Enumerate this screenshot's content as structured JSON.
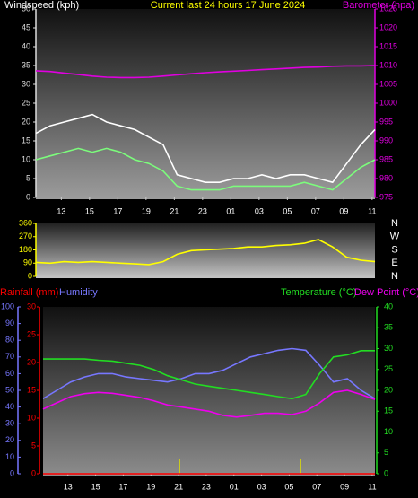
{
  "chart_data": [
    {
      "type": "line",
      "title": "Current last 24 hours 17 June 2024",
      "y_label": "Windspeed (kph)",
      "y2_label": "Barometer (hpa)",
      "x": [
        0,
        1,
        2,
        3,
        4,
        5,
        6,
        7,
        8,
        9,
        10,
        11,
        12,
        13,
        14,
        15,
        16,
        17,
        18,
        19,
        20,
        21,
        22,
        23,
        24
      ],
      "xlim": [
        0,
        24
      ],
      "xticks": [
        {
          "value": 1.8,
          "label": "13"
        },
        {
          "value": 3.8,
          "label": "15"
        },
        {
          "value": 5.8,
          "label": "17"
        },
        {
          "value": 7.8,
          "label": "19"
        },
        {
          "value": 9.8,
          "label": "21"
        },
        {
          "value": 11.8,
          "label": "23"
        },
        {
          "value": 13.8,
          "label": "01"
        },
        {
          "value": 15.8,
          "label": "03"
        },
        {
          "value": 17.8,
          "label": "05"
        },
        {
          "value": 19.8,
          "label": "07"
        },
        {
          "value": 21.8,
          "label": "09"
        },
        {
          "value": 23.8,
          "label": "11"
        }
      ],
      "ylim": [
        0,
        50
      ],
      "yticks": [
        0,
        5,
        10,
        15,
        20,
        25,
        30,
        35,
        40,
        45,
        50
      ],
      "y2lim": [
        975,
        1025
      ],
      "y2ticks": [
        975,
        980,
        985,
        990,
        995,
        1000,
        1005,
        1010,
        1015,
        1020,
        1025
      ],
      "series": [
        {
          "color": "#ffffff",
          "values": [
            17,
            19,
            20,
            21,
            22,
            20,
            19,
            18,
            16,
            14,
            6,
            5,
            4,
            4,
            5,
            5,
            6,
            5,
            6,
            6,
            5,
            4,
            9,
            14,
            18
          ]
        },
        {
          "color": "#7cfc7c",
          "values": [
            10,
            11,
            12,
            13,
            12,
            13,
            12,
            10,
            9,
            7,
            3,
            2,
            2,
            2,
            3,
            3,
            3,
            3,
            3,
            4,
            3,
            2,
            5,
            8,
            10
          ]
        },
        {
          "color": "#e000e0",
          "axis": "y2",
          "values": [
            1008.6,
            1008.4,
            1008,
            1007.6,
            1007.2,
            1006.9,
            1006.8,
            1006.8,
            1006.9,
            1007.2,
            1007.5,
            1007.8,
            1008.1,
            1008.3,
            1008.5,
            1008.7,
            1008.9,
            1009.1,
            1009.3,
            1009.5,
            1009.6,
            1009.8,
            1009.9,
            1009.9,
            1010
          ]
        }
      ]
    },
    {
      "type": "line",
      "x": [
        0,
        1,
        2,
        3,
        4,
        5,
        6,
        7,
        8,
        9,
        10,
        11,
        12,
        13,
        14,
        15,
        16,
        17,
        18,
        19,
        20,
        21,
        22,
        23,
        24
      ],
      "xlim": [
        0,
        24
      ],
      "ylim": [
        0,
        360
      ],
      "yticks": [
        0,
        90,
        180,
        270,
        360
      ],
      "y2lim": [
        0,
        360
      ],
      "y2ticks": [
        {
          "value": 0,
          "label": "N"
        },
        {
          "value": 90,
          "label": "E"
        },
        {
          "value": 180,
          "label": "S"
        },
        {
          "value": 270,
          "label": "W"
        },
        {
          "value": 360,
          "label": "N"
        }
      ],
      "series": [
        {
          "color": "#ffff00",
          "values": [
            95,
            90,
            100,
            95,
            100,
            95,
            90,
            85,
            80,
            100,
            150,
            175,
            180,
            185,
            190,
            200,
            200,
            210,
            215,
            225,
            250,
            200,
            130,
            110,
            100
          ]
        }
      ]
    },
    {
      "type": "line",
      "x": [
        0,
        1,
        2,
        3,
        4,
        5,
        6,
        7,
        8,
        9,
        10,
        11,
        12,
        13,
        14,
        15,
        16,
        17,
        18,
        19,
        20,
        21,
        22,
        23,
        24
      ],
      "xlim": [
        0,
        24
      ],
      "xticks": [
        {
          "value": 1.8,
          "label": "13"
        },
        {
          "value": 3.8,
          "label": "15"
        },
        {
          "value": 5.8,
          "label": "17"
        },
        {
          "value": 7.8,
          "label": "19"
        },
        {
          "value": 9.8,
          "label": "21"
        },
        {
          "value": 11.8,
          "label": "23"
        },
        {
          "value": 13.8,
          "label": "01"
        },
        {
          "value": 15.8,
          "label": "03"
        },
        {
          "value": 17.8,
          "label": "05"
        },
        {
          "value": 19.8,
          "label": "07"
        },
        {
          "value": 21.8,
          "label": "09"
        },
        {
          "value": 23.8,
          "label": "11"
        }
      ],
      "ylim": [
        0,
        100
      ],
      "yticks": [
        0,
        10,
        20,
        30,
        40,
        50,
        60,
        70,
        80,
        90,
        100
      ],
      "y2lim": [
        0,
        40
      ],
      "y2ticks": [
        0,
        5,
        10,
        15,
        20,
        25,
        30,
        35,
        40
      ],
      "y3lim": [
        0,
        30
      ],
      "y3ticks": [
        0,
        5,
        10,
        15,
        20,
        25,
        30
      ],
      "series": [
        {
          "name": "Rainfall (mm)",
          "color": "#ff0000",
          "axis": "y3",
          "values": [
            0,
            0,
            0,
            0,
            0,
            0,
            0,
            0,
            0,
            0,
            0,
            0,
            0,
            0,
            0,
            0,
            0,
            0,
            0,
            0,
            0,
            0,
            0,
            0,
            0
          ]
        },
        {
          "name": "Humidity",
          "color": "#7777ff",
          "values": [
            45,
            50,
            55,
            58,
            60,
            60,
            58,
            57,
            56,
            55,
            57,
            60,
            60,
            62,
            66,
            70,
            72,
            74,
            75,
            74,
            65,
            55,
            57,
            50,
            45
          ]
        },
        {
          "name": "Temperature (°C)",
          "color": "#22dd22",
          "axis": "y2",
          "values": [
            27.5,
            27.5,
            27.5,
            27.5,
            27.2,
            27,
            26.5,
            26,
            25,
            23.5,
            22.5,
            21.5,
            21,
            20.5,
            20,
            19.5,
            19,
            18.5,
            18,
            19,
            24,
            28,
            28.5,
            29.5,
            29.5
          ]
        },
        {
          "name": "Dew Point (°C)",
          "color": "#ee00ee",
          "axis": "y2",
          "values": [
            15.5,
            17,
            18.5,
            19.2,
            19.5,
            19.3,
            18.8,
            18.3,
            17.5,
            16.5,
            16,
            15.5,
            15,
            14,
            13.6,
            14,
            14.5,
            14.5,
            14.2,
            15,
            17,
            19.5,
            20,
            19,
            17.8
          ]
        }
      ]
    }
  ]
}
